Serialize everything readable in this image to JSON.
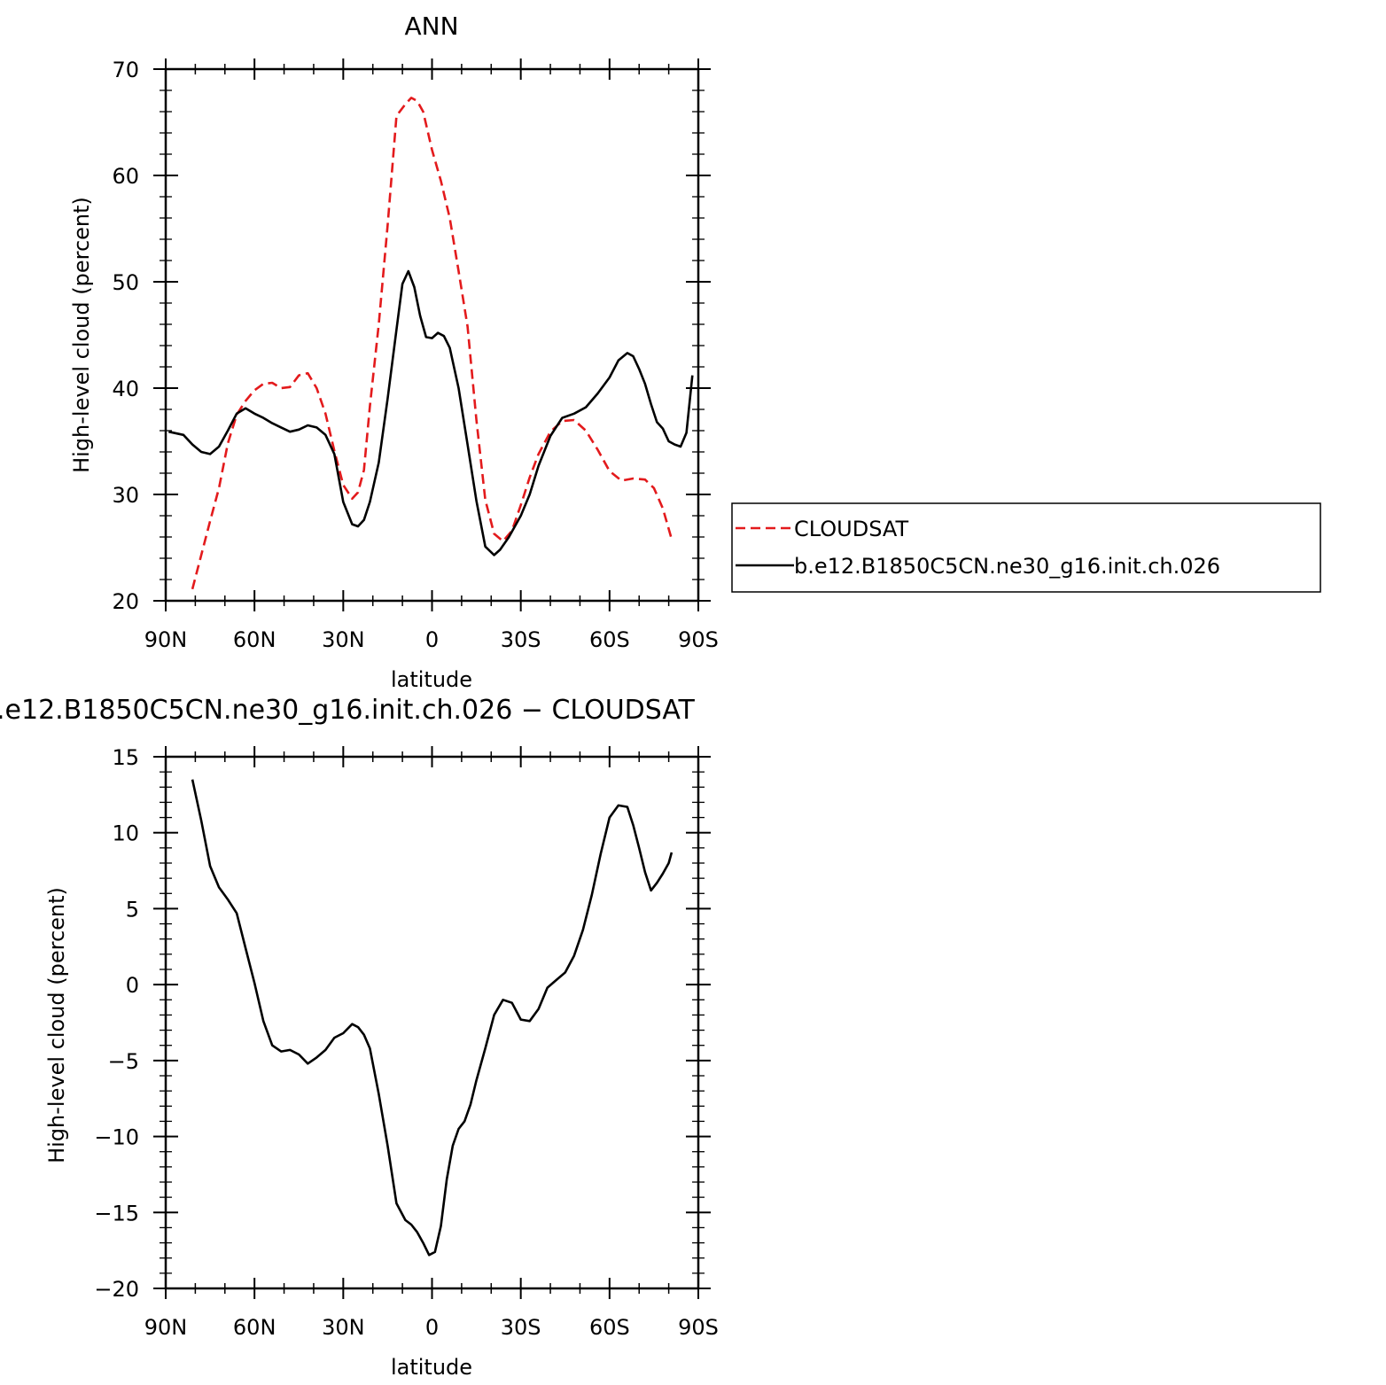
{
  "chart_data": [
    {
      "type": "line",
      "title": "ANN",
      "xlabel": "latitude",
      "ylabel": "High-level cloud (percent)",
      "xlim": [
        90,
        -90
      ],
      "ylim": [
        20,
        70
      ],
      "x_ticks": [
        {
          "value": 90,
          "label": "90N"
        },
        {
          "value": 60,
          "label": "60N"
        },
        {
          "value": 30,
          "label": "30N"
        },
        {
          "value": 0,
          "label": "0"
        },
        {
          "value": -30,
          "label": "30S"
        },
        {
          "value": -60,
          "label": "60S"
        },
        {
          "value": -90,
          "label": "90S"
        }
      ],
      "y_ticks": [
        {
          "value": 20,
          "label": "20"
        },
        {
          "value": 30,
          "label": "30"
        },
        {
          "value": 40,
          "label": "40"
        },
        {
          "value": 50,
          "label": "50"
        },
        {
          "value": 60,
          "label": "60"
        },
        {
          "value": 70,
          "label": "70"
        }
      ],
      "grid": false,
      "legend": "right",
      "series": [
        {
          "name": "CLOUDSAT",
          "color": "#e31a1c",
          "dash": "dashed",
          "x": [
            81,
            78,
            75,
            72,
            69,
            66,
            63,
            60,
            57,
            54,
            51,
            48,
            45,
            42,
            39,
            36,
            33,
            30,
            27,
            25,
            23,
            21,
            18,
            15,
            12,
            9,
            7,
            5,
            3,
            0,
            -3,
            -6,
            -9,
            -12,
            -15,
            -18,
            -21,
            -24,
            -27,
            -30,
            -33,
            -36,
            -40,
            -44,
            -48,
            -52,
            -56,
            -60,
            -64,
            -68,
            -72,
            -75,
            -78,
            -81
          ],
          "y": [
            21.1,
            24.3,
            27.5,
            30.6,
            34.8,
            37.5,
            38.8,
            39.8,
            40.4,
            40.5,
            40.0,
            40.1,
            41.2,
            41.4,
            40.0,
            37.6,
            34.1,
            30.9,
            29.6,
            30.2,
            32.3,
            38.3,
            46.0,
            55.3,
            65.6,
            66.7,
            67.3,
            67.0,
            66.0,
            62.4,
            59.5,
            56.0,
            51.0,
            45.8,
            37.0,
            29.5,
            26.3,
            25.6,
            26.6,
            29.0,
            31.6,
            33.8,
            35.9,
            36.9,
            37.0,
            36.0,
            34.2,
            32.2,
            31.3,
            31.5,
            31.4,
            30.6,
            28.7,
            25.8
          ]
        },
        {
          "name": "b.e12.B1850C5CN.ne30_g16.init.ch.026",
          "color": "#000000",
          "dash": "solid",
          "x": [
            89,
            84,
            81,
            78,
            75,
            72,
            69,
            66,
            63,
            60,
            57,
            54,
            51,
            48,
            45,
            42,
            39,
            36,
            33,
            30,
            27,
            25,
            23,
            21,
            18,
            15,
            12,
            10,
            8,
            6,
            4,
            2,
            0,
            -2,
            -4,
            -6,
            -9,
            -12,
            -15,
            -18,
            -21,
            -23,
            -26,
            -30,
            -33,
            -36,
            -40,
            -44,
            -48,
            -52,
            -56,
            -60,
            -63,
            -66,
            -68,
            -70,
            -72,
            -74,
            -76,
            -78,
            -80,
            -82,
            -84,
            -86,
            -88
          ],
          "y": [
            35.9,
            35.6,
            34.7,
            34.0,
            33.8,
            34.5,
            36.0,
            37.6,
            38.1,
            37.6,
            37.2,
            36.7,
            36.3,
            35.9,
            36.1,
            36.5,
            36.3,
            35.6,
            33.8,
            29.3,
            27.2,
            27.0,
            27.6,
            29.3,
            33.0,
            39.0,
            45.5,
            49.8,
            51.0,
            49.5,
            46.8,
            44.8,
            44.7,
            45.2,
            44.9,
            43.8,
            40.0,
            34.7,
            29.4,
            25.1,
            24.3,
            24.8,
            26.0,
            28.0,
            30.0,
            32.7,
            35.5,
            37.2,
            37.6,
            38.2,
            39.5,
            41.0,
            42.6,
            43.3,
            43.0,
            41.8,
            40.4,
            38.5,
            36.8,
            36.2,
            35.0,
            34.7,
            34.5,
            35.8,
            41.2
          ]
        }
      ]
    },
    {
      "type": "line",
      "title": ".e12.B1850C5CN.ne30_g16.init.ch.026 − CLOUDSAT",
      "xlabel": "latitude",
      "ylabel": "High-level cloud (percent)",
      "xlim": [
        90,
        -90
      ],
      "ylim": [
        -20,
        15
      ],
      "x_ticks": [
        {
          "value": 90,
          "label": "90N"
        },
        {
          "value": 60,
          "label": "60N"
        },
        {
          "value": 30,
          "label": "30N"
        },
        {
          "value": 0,
          "label": "0"
        },
        {
          "value": -30,
          "label": "30S"
        },
        {
          "value": -60,
          "label": "60S"
        },
        {
          "value": -90,
          "label": "90S"
        }
      ],
      "y_ticks": [
        {
          "value": -20,
          "label": "−20"
        },
        {
          "value": -15,
          "label": "−15"
        },
        {
          "value": -10,
          "label": "−10"
        },
        {
          "value": -5,
          "label": "−5"
        },
        {
          "value": 0,
          "label": "0"
        },
        {
          "value": 5,
          "label": "5"
        },
        {
          "value": 10,
          "label": "10"
        },
        {
          "value": 15,
          "label": "15"
        }
      ],
      "grid": false,
      "series": [
        {
          "color": "#000000",
          "dash": "solid",
          "x": [
            81,
            78,
            75,
            72,
            69,
            66,
            63,
            60,
            57,
            54,
            51,
            48,
            45,
            42,
            39,
            36,
            33,
            30,
            27,
            25,
            23,
            21,
            18,
            15,
            12,
            9,
            7,
            5,
            3,
            1,
            -1,
            -3,
            -5,
            -7,
            -9,
            -11,
            -13,
            -15,
            -18,
            -21,
            -24,
            -27,
            -30,
            -33,
            -36,
            -39,
            -42,
            -45,
            -48,
            -51,
            -54,
            -57,
            -60,
            -63,
            -66,
            -68,
            -70,
            -72,
            -74,
            -76,
            -78,
            -80,
            -81
          ],
          "y": [
            13.5,
            10.8,
            7.8,
            6.4,
            5.6,
            4.7,
            2.4,
            0.1,
            -2.4,
            -4.0,
            -4.4,
            -4.3,
            -4.6,
            -5.2,
            -4.8,
            -4.3,
            -3.5,
            -3.2,
            -2.6,
            -2.8,
            -3.3,
            -4.2,
            -7.2,
            -10.6,
            -14.4,
            -15.5,
            -15.8,
            -16.3,
            -17.0,
            -17.8,
            -17.6,
            -15.9,
            -12.8,
            -10.6,
            -9.5,
            -9.0,
            -7.9,
            -6.3,
            -4.2,
            -2.0,
            -1.0,
            -1.2,
            -2.3,
            -2.4,
            -1.6,
            -0.2,
            0.3,
            0.8,
            1.9,
            3.6,
            5.9,
            8.6,
            11.0,
            11.8,
            11.7,
            10.5,
            9.0,
            7.4,
            6.2,
            6.7,
            7.3,
            8.0,
            8.7
          ]
        }
      ]
    }
  ]
}
